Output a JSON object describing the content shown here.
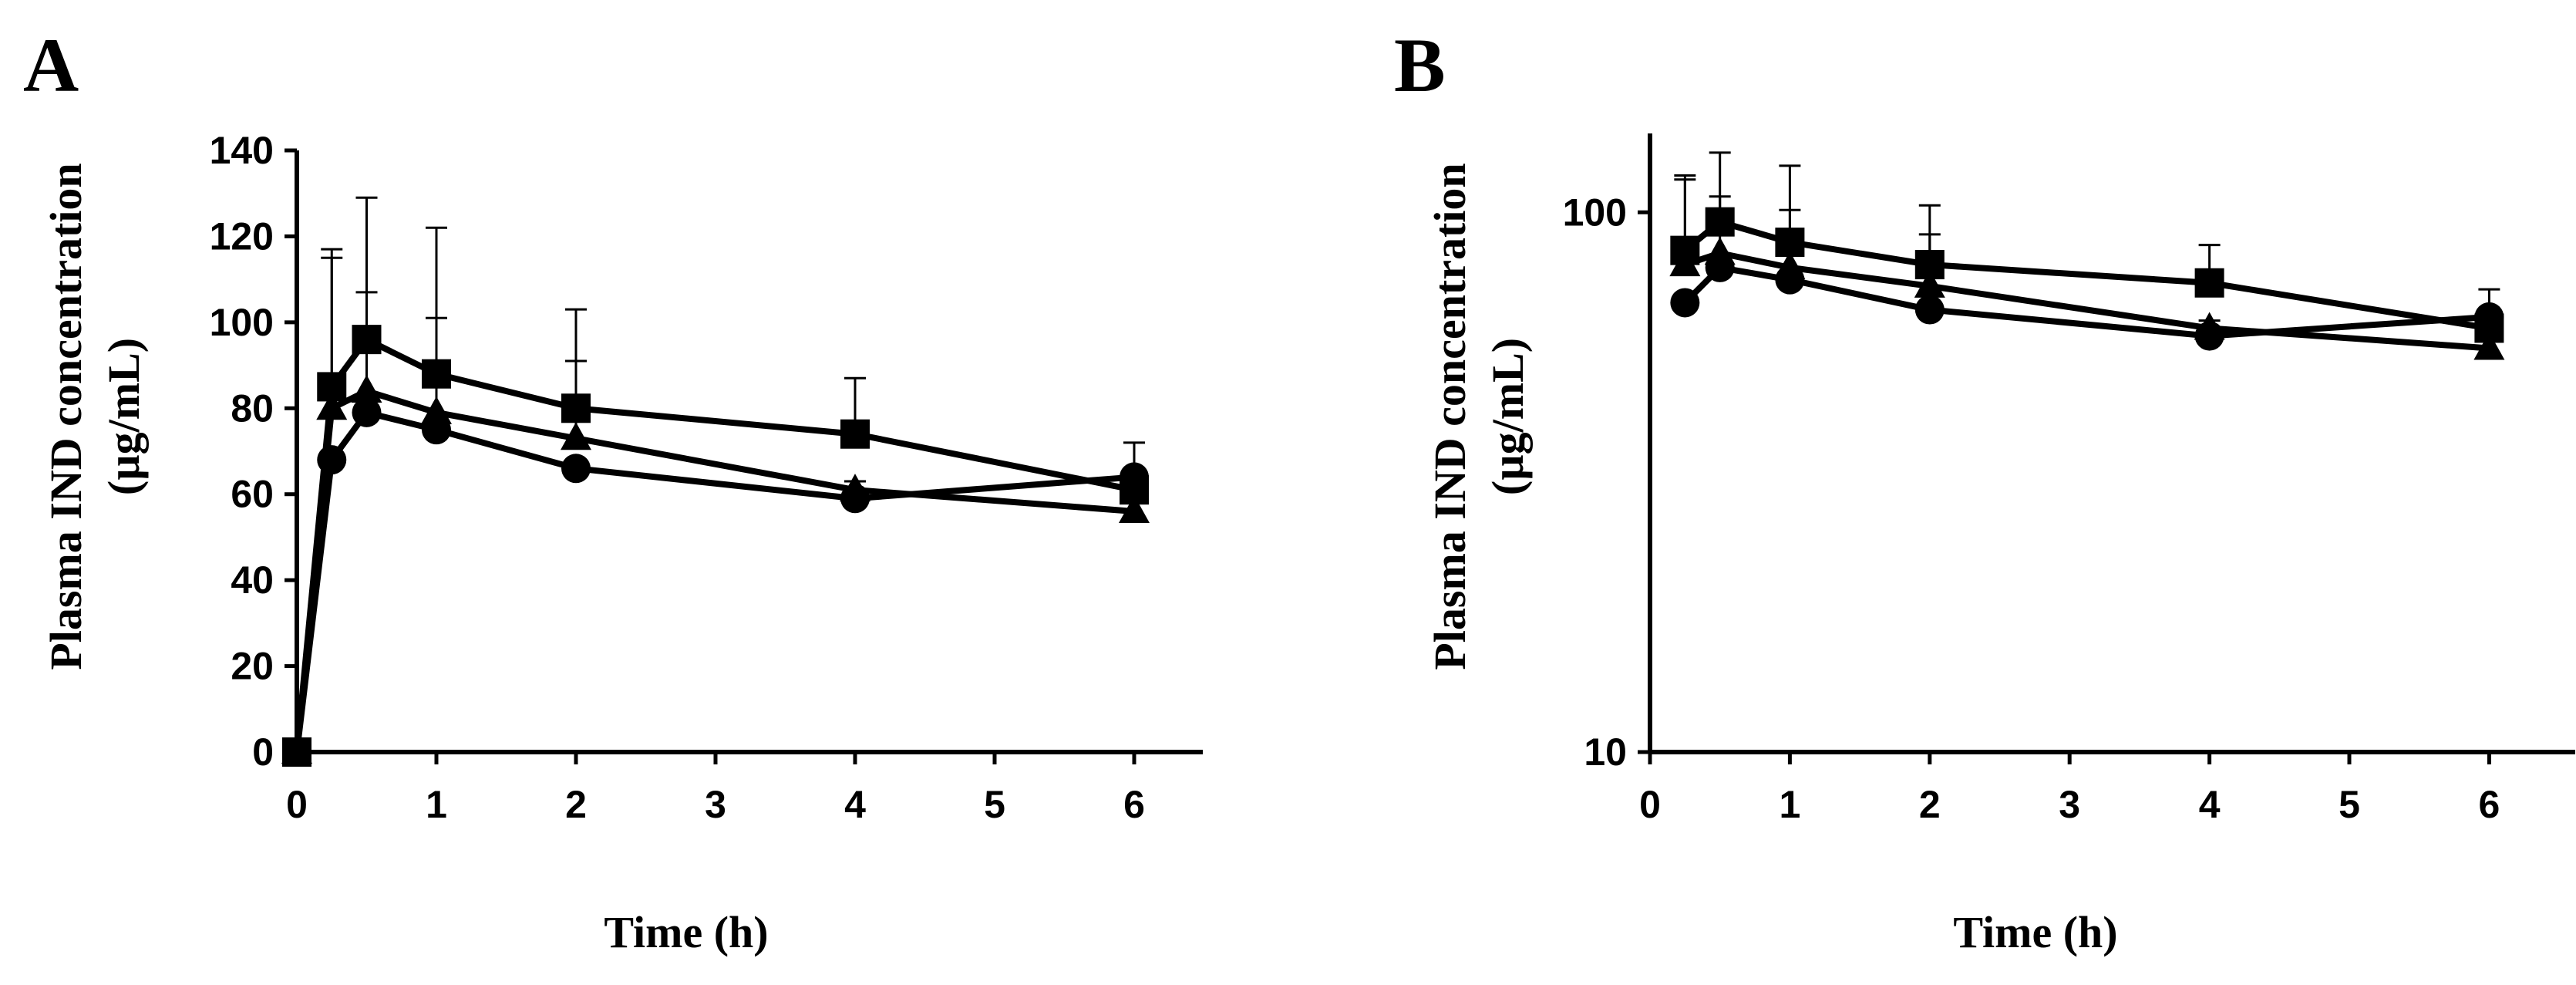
{
  "chart_data": [
    {
      "panel": "A",
      "type": "line",
      "scale": "linear",
      "title": "",
      "xlabel": "Time (h)",
      "ylabel": "Plasma IND concentration",
      "ylabel_unit": "(µg/mL)",
      "xlim": [
        0,
        6.4
      ],
      "ylim": [
        0,
        140
      ],
      "x_ticks": [
        0,
        1,
        2,
        3,
        4,
        5,
        6
      ],
      "y_ticks": [
        0,
        20,
        40,
        60,
        80,
        100,
        120,
        140
      ],
      "series": [
        {
          "name": "square",
          "marker": "square",
          "x": [
            0,
            0.25,
            0.5,
            1,
            2,
            4,
            6
          ],
          "values": [
            0,
            85,
            96,
            88,
            80,
            74,
            61
          ],
          "error": [
            0,
            32,
            33,
            34,
            23,
            13,
            0
          ]
        },
        {
          "name": "triangle",
          "marker": "triangle",
          "x": [
            0,
            0.25,
            0.5,
            1,
            2,
            4,
            6
          ],
          "values": [
            0,
            80,
            84,
            79,
            73,
            61,
            56
          ],
          "error": [
            0,
            35,
            23,
            22,
            18,
            0,
            0
          ]
        },
        {
          "name": "circle",
          "marker": "circle",
          "x": [
            0,
            0.25,
            0.5,
            1,
            2,
            4,
            6
          ],
          "values": [
            0,
            68,
            79,
            75,
            66,
            59,
            64
          ],
          "error": [
            0,
            0,
            0,
            0,
            0,
            4,
            8
          ]
        }
      ]
    },
    {
      "panel": "B",
      "type": "line",
      "scale": "log",
      "title": "",
      "xlabel": "Time (h)",
      "ylabel": "Plasma IND concentration",
      "ylabel_unit": "(µg/mL)",
      "xlim": [
        0,
        6.4
      ],
      "ylim": [
        10,
        140
      ],
      "x_ticks": [
        0,
        1,
        2,
        3,
        4,
        5,
        6
      ],
      "y_ticks": [
        10,
        100
      ],
      "series": [
        {
          "name": "square",
          "marker": "square",
          "x": [
            0.25,
            0.5,
            1,
            2,
            4,
            6
          ],
          "values": [
            85,
            96,
            88,
            80,
            74,
            61
          ],
          "error": [
            32,
            33,
            34,
            23,
            13,
            0
          ]
        },
        {
          "name": "triangle",
          "marker": "triangle",
          "x": [
            0.25,
            0.5,
            1,
            2,
            4,
            6
          ],
          "values": [
            80,
            84,
            79,
            73,
            61,
            56
          ],
          "error": [
            35,
            23,
            22,
            18,
            0,
            0
          ]
        },
        {
          "name": "circle",
          "marker": "circle",
          "x": [
            0.25,
            0.5,
            1,
            2,
            4,
            6
          ],
          "values": [
            68,
            79,
            75,
            66,
            59,
            64
          ],
          "error": [
            0,
            0,
            0,
            0,
            4,
            8
          ]
        }
      ]
    }
  ]
}
